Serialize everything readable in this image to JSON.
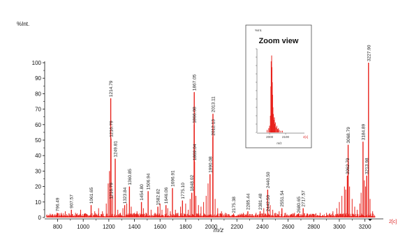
{
  "chart_data": {
    "type": "bar",
    "ylabel": "%Int.",
    "xlabel": "m/z",
    "xlim": [
      710,
      3300
    ],
    "ylim": [
      0,
      100
    ],
    "x_ticks": [
      800,
      1000,
      1200,
      1400,
      1600,
      1800,
      2000,
      2200,
      2400,
      2600,
      2800,
      3000,
      3200
    ],
    "y_ticks": [
      0,
      10,
      20,
      30,
      40,
      50,
      60,
      70,
      80,
      90,
      100
    ],
    "corner_label": "2[c]",
    "labeled_peaks": [
      {
        "x": 796.49,
        "y": 3,
        "label": "796.49"
      },
      {
        "x": 907.57,
        "y": 5,
        "label": "907.57"
      },
      {
        "x": 1061.65,
        "y": 8,
        "label": "1061.65"
      },
      {
        "x": 1214.79,
        "y": 77,
        "label": "1214.79"
      },
      {
        "x": 1216.79,
        "y": 51,
        "label": "1216.79"
      },
      {
        "x": 1249.81,
        "y": 38,
        "label": "1249.81"
      },
      {
        "x": 1216.79,
        "y": 11,
        "label": "1216.79"
      },
      {
        "x": 1360.85,
        "y": 20,
        "label": "1360.85"
      },
      {
        "x": 1323.84,
        "y": 8,
        "label": "1323.84"
      },
      {
        "x": 1454.8,
        "y": 10,
        "label": "1454.80"
      },
      {
        "x": 1506.94,
        "y": 17,
        "label": "1506.94"
      },
      {
        "x": 1582.82,
        "y": 7,
        "label": "1582.82"
      },
      {
        "x": 1646.06,
        "y": 8,
        "label": "1646.06"
      },
      {
        "x": 1696.91,
        "y": 19,
        "label": "1696.91"
      },
      {
        "x": 1775.1,
        "y": 11,
        "label": "1775.10"
      },
      {
        "x": 1848.02,
        "y": 16,
        "label": "1848.02"
      },
      {
        "x": 1867.05,
        "y": 81,
        "label": "1867.05"
      },
      {
        "x": 1866.08,
        "y": 60,
        "label": "1866.08"
      },
      {
        "x": 1869.04,
        "y": 36,
        "label": "1869.04"
      },
      {
        "x": 1990.08,
        "y": 28,
        "label": "1990.08"
      },
      {
        "x": 2013.11,
        "y": 67,
        "label": "2013.11"
      },
      {
        "x": 2012.13,
        "y": 52,
        "label": "2012.13"
      },
      {
        "x": 2175.38,
        "y": 2,
        "label": "2175.38"
      },
      {
        "x": 2285.44,
        "y": 4,
        "label": "2285.44"
      },
      {
        "x": 2381.48,
        "y": 4,
        "label": "2381.48"
      },
      {
        "x": 2440.5,
        "y": 18,
        "label": "2440.50"
      },
      {
        "x": 2442.5,
        "y": 3,
        "label": "2442.50"
      },
      {
        "x": 2551.54,
        "y": 6,
        "label": "2551.54"
      },
      {
        "x": 2680.65,
        "y": 2,
        "label": "2680.65"
      },
      {
        "x": 2717.57,
        "y": 6,
        "label": "2717.57"
      },
      {
        "x": 3068.79,
        "y": 47,
        "label": "3068.79"
      },
      {
        "x": 3062.79,
        "y": 27,
        "label": "3062.79"
      },
      {
        "x": 3184.89,
        "y": 49,
        "label": "3184.89"
      },
      {
        "x": 3213.98,
        "y": 27,
        "label": "3213.98"
      },
      {
        "x": 3227.9,
        "y": 100,
        "label": "3227.90"
      }
    ],
    "background_peaks": [
      [
        760,
        2
      ],
      [
        830,
        3
      ],
      [
        860,
        4
      ],
      [
        940,
        3
      ],
      [
        980,
        5
      ],
      [
        1010,
        2
      ],
      [
        1090,
        4
      ],
      [
        1120,
        6
      ],
      [
        1150,
        4
      ],
      [
        1180,
        9
      ],
      [
        1195,
        22
      ],
      [
        1205,
        30
      ],
      [
        1230,
        14
      ],
      [
        1270,
        5
      ],
      [
        1290,
        3
      ],
      [
        1310,
        6
      ],
      [
        1340,
        9
      ],
      [
        1375,
        7
      ],
      [
        1400,
        3
      ],
      [
        1420,
        4
      ],
      [
        1470,
        6
      ],
      [
        1490,
        3
      ],
      [
        1530,
        5
      ],
      [
        1560,
        3
      ],
      [
        1600,
        9
      ],
      [
        1615,
        5
      ],
      [
        1660,
        6
      ],
      [
        1680,
        4
      ],
      [
        1720,
        5
      ],
      [
        1740,
        3
      ],
      [
        1760,
        7
      ],
      [
        1800,
        9
      ],
      [
        1820,
        5
      ],
      [
        1835,
        12
      ],
      [
        1880,
        14
      ],
      [
        1900,
        8
      ],
      [
        1920,
        7
      ],
      [
        1940,
        10
      ],
      [
        1960,
        14
      ],
      [
        1975,
        22
      ],
      [
        2030,
        12
      ],
      [
        2050,
        6
      ],
      [
        2080,
        4
      ],
      [
        2110,
        3
      ],
      [
        2140,
        2
      ],
      [
        2210,
        2
      ],
      [
        2250,
        3
      ],
      [
        2320,
        2
      ],
      [
        2350,
        3
      ],
      [
        2410,
        6
      ],
      [
        2460,
        8
      ],
      [
        2480,
        5
      ],
      [
        2500,
        3
      ],
      [
        2530,
        4
      ],
      [
        2580,
        3
      ],
      [
        2620,
        2
      ],
      [
        2650,
        3
      ],
      [
        2750,
        2
      ],
      [
        2800,
        2
      ],
      [
        2850,
        3
      ],
      [
        2900,
        3
      ],
      [
        2950,
        4
      ],
      [
        2980,
        6
      ],
      [
        3000,
        10
      ],
      [
        3020,
        14
      ],
      [
        3040,
        20
      ],
      [
        3050,
        18
      ],
      [
        3080,
        20
      ],
      [
        3100,
        12
      ],
      [
        3120,
        7
      ],
      [
        3140,
        5
      ],
      [
        3160,
        9
      ],
      [
        3170,
        16
      ],
      [
        3195,
        24
      ],
      [
        3205,
        20
      ],
      [
        3240,
        12
      ],
      [
        3260,
        4
      ]
    ],
    "inset": {
      "title": "Zoom view",
      "ylabel": "%Int.",
      "xlabel": "m/z",
      "xlim": [
        1930,
        2200
      ],
      "x_ticks": [
        2000,
        2100
      ],
      "corner_label": "2[c]",
      "peaks": [
        [
          1985,
          3
        ],
        [
          1995,
          5
        ],
        [
          2000,
          8
        ],
        [
          2005,
          20
        ],
        [
          2008,
          55
        ],
        [
          2010,
          85
        ],
        [
          2012,
          70
        ],
        [
          2013,
          92
        ],
        [
          2015,
          78
        ],
        [
          2017,
          60
        ],
        [
          2019,
          45
        ],
        [
          2021,
          30
        ],
        [
          2024,
          22
        ],
        [
          2027,
          15
        ],
        [
          2030,
          18
        ],
        [
          2033,
          10
        ],
        [
          2036,
          12
        ],
        [
          2040,
          6
        ],
        [
          2045,
          8
        ],
        [
          2050,
          4
        ],
        [
          2055,
          5
        ],
        [
          2060,
          3
        ],
        [
          2070,
          2
        ],
        [
          2080,
          2
        ]
      ]
    }
  }
}
